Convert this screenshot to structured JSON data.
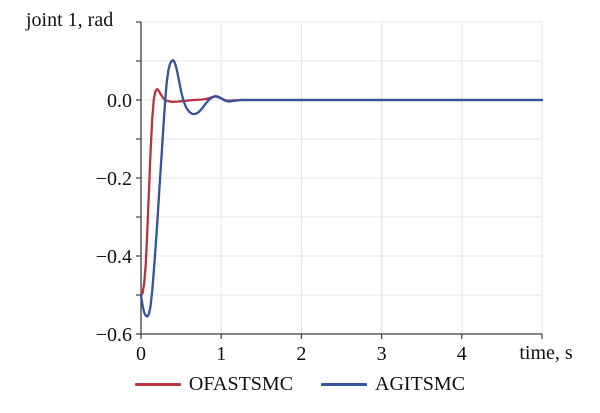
{
  "figure": {
    "axis_title": "joint 1, rad",
    "x_axis_label": "time, s"
  },
  "chart_data": {
    "type": "line",
    "title": "joint 1, rad",
    "xlabel": "time, s",
    "ylabel": "joint 1, rad",
    "xlim": [
      0,
      5
    ],
    "ylim": [
      -0.6,
      0.2
    ],
    "grid": true,
    "legend_position": "bottom-center",
    "colors": {
      "grid": "#e4e4e4",
      "axis": "#3d3d3d",
      "text": "#111111"
    },
    "xticks": [
      {
        "t": 0,
        "label": "0"
      },
      {
        "t": 1,
        "label": "1"
      },
      {
        "t": 2,
        "label": "2"
      },
      {
        "t": 3,
        "label": "3"
      },
      {
        "t": 4,
        "label": "4"
      },
      {
        "t": 5,
        "label": ""
      }
    ],
    "yticks": [
      {
        "v": 0.2,
        "label": ""
      },
      {
        "v": 0.1,
        "label": ""
      },
      {
        "v": 0.0,
        "label": "0.0"
      },
      {
        "v": -0.1,
        "label": ""
      },
      {
        "v": -0.2,
        "label": "−0.2"
      },
      {
        "v": -0.3,
        "label": ""
      },
      {
        "v": -0.4,
        "label": "−0.4"
      },
      {
        "v": -0.5,
        "label": ""
      },
      {
        "v": -0.6,
        "label": "−0.6"
      }
    ],
    "grid_x": [
      1,
      2,
      3,
      4,
      5
    ],
    "grid_y": [
      0.2,
      0.1,
      0.0,
      -0.1,
      -0.2,
      -0.3,
      -0.4,
      -0.5
    ],
    "series": [
      {
        "name": "OFASTSMC",
        "color": "#b73440",
        "points": [
          [
            0,
            -0.5
          ],
          [
            0.02,
            -0.495
          ],
          [
            0.04,
            -0.47
          ],
          [
            0.06,
            -0.42
          ],
          [
            0.08,
            -0.33
          ],
          [
            0.1,
            -0.23
          ],
          [
            0.12,
            -0.13
          ],
          [
            0.14,
            -0.05
          ],
          [
            0.16,
            0.002
          ],
          [
            0.18,
            0.022
          ],
          [
            0.2,
            0.028
          ],
          [
            0.22,
            0.024
          ],
          [
            0.25,
            0.013
          ],
          [
            0.28,
            0.004
          ],
          [
            0.32,
            -0.002
          ],
          [
            0.38,
            -0.005
          ],
          [
            0.46,
            -0.004
          ],
          [
            0.55,
            -0.002
          ],
          [
            0.65,
            0
          ],
          [
            0.75,
            0.001
          ],
          [
            0.82,
            0.003
          ],
          [
            0.88,
            0.007
          ],
          [
            0.93,
            0.009
          ],
          [
            0.98,
            0.006
          ],
          [
            1.03,
            0.001
          ],
          [
            1.08,
            -0.002
          ],
          [
            1.15,
            -0.001
          ],
          [
            1.25,
            0
          ],
          [
            1.5,
            0
          ],
          [
            2,
            0
          ],
          [
            2.5,
            0
          ],
          [
            3,
            0
          ],
          [
            3.5,
            0
          ],
          [
            4,
            0
          ],
          [
            4.5,
            0
          ],
          [
            5,
            0
          ]
        ]
      },
      {
        "name": "AGITSMC",
        "color": "#33549e",
        "points": [
          [
            0,
            -0.5
          ],
          [
            0.02,
            -0.527
          ],
          [
            0.04,
            -0.545
          ],
          [
            0.06,
            -0.553
          ],
          [
            0.08,
            -0.555
          ],
          [
            0.1,
            -0.548
          ],
          [
            0.12,
            -0.528
          ],
          [
            0.14,
            -0.49
          ],
          [
            0.16,
            -0.44
          ],
          [
            0.18,
            -0.385
          ],
          [
            0.2,
            -0.325
          ],
          [
            0.22,
            -0.26
          ],
          [
            0.24,
            -0.195
          ],
          [
            0.26,
            -0.13
          ],
          [
            0.28,
            -0.065
          ],
          [
            0.3,
            -0.005
          ],
          [
            0.32,
            0.045
          ],
          [
            0.34,
            0.075
          ],
          [
            0.36,
            0.092
          ],
          [
            0.38,
            0.1
          ],
          [
            0.4,
            0.102
          ],
          [
            0.42,
            0.096
          ],
          [
            0.44,
            0.083
          ],
          [
            0.46,
            0.064
          ],
          [
            0.48,
            0.043
          ],
          [
            0.5,
            0.022
          ],
          [
            0.53,
            -0.002
          ],
          [
            0.56,
            -0.018
          ],
          [
            0.6,
            -0.03
          ],
          [
            0.64,
            -0.036
          ],
          [
            0.68,
            -0.036
          ],
          [
            0.72,
            -0.031
          ],
          [
            0.76,
            -0.022
          ],
          [
            0.8,
            -0.011
          ],
          [
            0.84,
            -0.001
          ],
          [
            0.88,
            0.006
          ],
          [
            0.92,
            0.01
          ],
          [
            0.96,
            0.009
          ],
          [
            1,
            0.004
          ],
          [
            1.05,
            -0.002
          ],
          [
            1.1,
            -0.004
          ],
          [
            1.16,
            -0.002
          ],
          [
            1.25,
            0
          ],
          [
            1.5,
            0
          ],
          [
            2,
            0
          ],
          [
            2.5,
            0
          ],
          [
            3,
            0
          ],
          [
            3.5,
            0
          ],
          [
            4,
            0
          ],
          [
            4.5,
            0
          ],
          [
            5,
            0
          ]
        ]
      }
    ]
  }
}
